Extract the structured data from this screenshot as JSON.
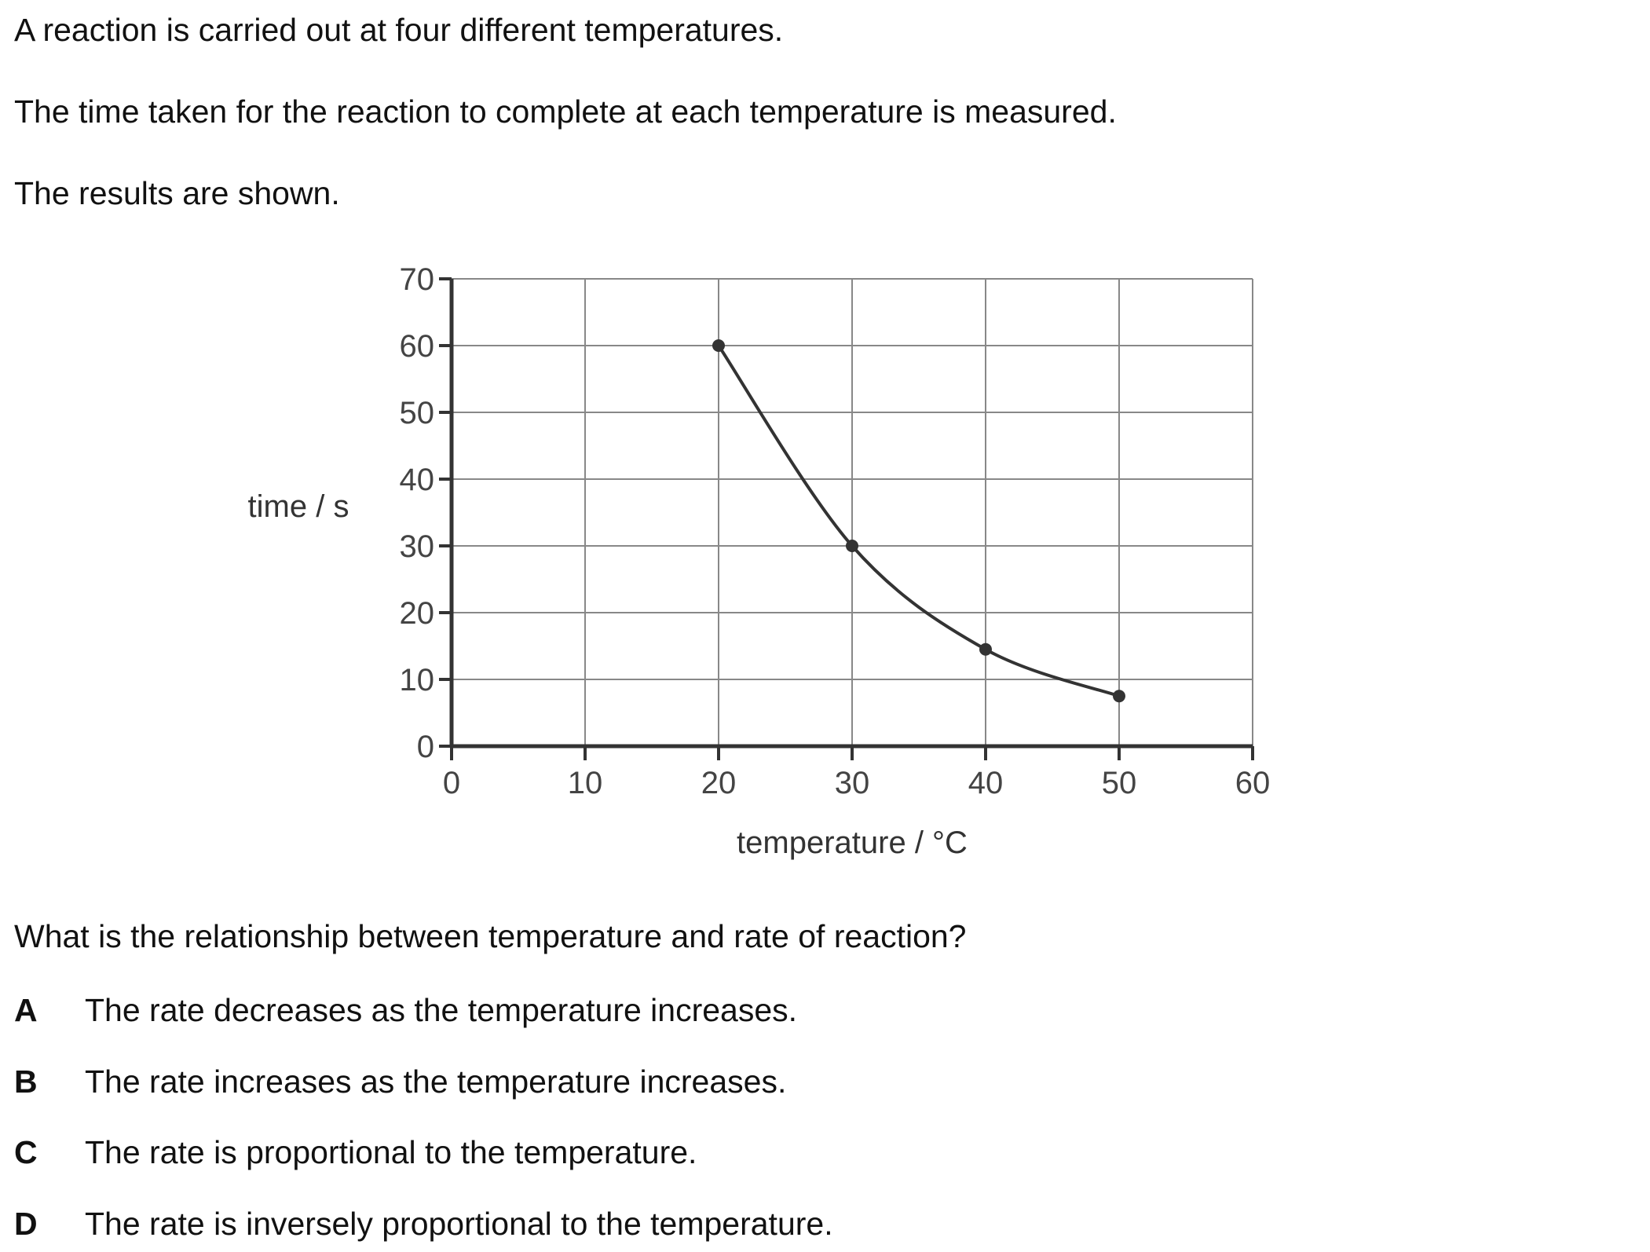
{
  "question": {
    "intro": [
      "A reaction is carried out at four different temperatures.",
      "The time taken for the reaction to complete at each temperature is measured.",
      "The results are shown."
    ],
    "prompt": "What is the relationship between temperature and rate of reaction?",
    "options": [
      {
        "letter": "A",
        "text": "The rate decreases as the temperature increases."
      },
      {
        "letter": "B",
        "text": "The rate increases as the temperature increases."
      },
      {
        "letter": "C",
        "text": "The rate is proportional to the temperature."
      },
      {
        "letter": "D",
        "text": "The rate is inversely proportional to the temperature."
      }
    ]
  },
  "chart_data": {
    "type": "line",
    "title": "",
    "xlabel": "temperature / °C",
    "ylabel": "time / s",
    "xlim": [
      0,
      60
    ],
    "ylim": [
      0,
      70
    ],
    "x_ticks": [
      0,
      10,
      20,
      30,
      40,
      50,
      60
    ],
    "y_ticks": [
      0,
      10,
      20,
      30,
      40,
      50,
      60,
      70
    ],
    "grid": true,
    "series": [
      {
        "x": [
          20,
          30,
          40,
          50
        ],
        "y": [
          60,
          30,
          14.5,
          7.5
        ]
      }
    ],
    "colors": {
      "line": "#333333",
      "grid": "#888888",
      "axis": "#333333"
    }
  }
}
